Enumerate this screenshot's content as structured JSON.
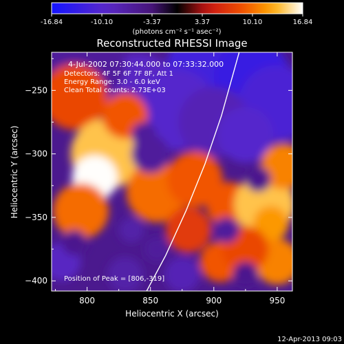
{
  "chart_data": {
    "type": "heatmap",
    "title": "Reconstructed RHESSI Image",
    "xlabel": "Heliocentric X (arcsec)",
    "ylabel": "Heliocentric Y (arcsec)",
    "xlim": [
      772,
      962
    ],
    "ylim": [
      -408,
      -220
    ],
    "xticks": [
      800,
      850,
      900,
      950
    ],
    "yticks": [
      -250,
      -300,
      -350,
      -400
    ],
    "colorbar": {
      "min": -16.84,
      "max": 16.84,
      "ticks": [
        "-16.84",
        "-10.10",
        "-3.37",
        "3.37",
        "10.10",
        "16.84"
      ],
      "unit_label": "(photons cm⁻² s⁻¹ asec⁻²)"
    },
    "annotations": {
      "time": "4-Jul-2002 07:30:44.000 to 07:33:32.000",
      "detectors": "Detectors: 4F 5F 6F 7F 8F, Att 1",
      "energy": "Energy Range: 3.0 - 6.0 keV",
      "method": "Clean     Total counts: 2.73E+03",
      "peak": "Position of Peak = [806,-319]"
    },
    "limb": {
      "description": "solar limb arc",
      "points": [
        [
          847,
          -408
        ],
        [
          862,
          -380
        ],
        [
          878,
          -345
        ],
        [
          893,
          -308
        ],
        [
          906,
          -270
        ],
        [
          920,
          -220
        ]
      ]
    },
    "blobs": [
      {
        "x": 900,
        "y": -235,
        "r": 38,
        "v": -12
      },
      {
        "x": 930,
        "y": -240,
        "r": 30,
        "v": -13
      },
      {
        "x": 950,
        "y": -260,
        "r": 30,
        "v": -11
      },
      {
        "x": 840,
        "y": -250,
        "r": 30,
        "v": -9
      },
      {
        "x": 870,
        "y": -265,
        "r": 32,
        "v": -10
      },
      {
        "x": 900,
        "y": -275,
        "r": 28,
        "v": -8
      },
      {
        "x": 800,
        "y": -230,
        "r": 30,
        "v": -6
      },
      {
        "x": 925,
        "y": -285,
        "r": 22,
        "v": -10
      },
      {
        "x": 790,
        "y": -255,
        "r": 26,
        "v": 8
      },
      {
        "x": 815,
        "y": -300,
        "r": 28,
        "v": 14
      },
      {
        "x": 806,
        "y": -319,
        "r": 18,
        "v": 16.8
      },
      {
        "x": 795,
        "y": -345,
        "r": 22,
        "v": 10
      },
      {
        "x": 830,
        "y": -270,
        "r": 18,
        "v": 9
      },
      {
        "x": 855,
        "y": -330,
        "r": 24,
        "v": 10
      },
      {
        "x": 885,
        "y": -320,
        "r": 22,
        "v": 9
      },
      {
        "x": 912,
        "y": -340,
        "r": 18,
        "v": 9
      },
      {
        "x": 940,
        "y": -340,
        "r": 24,
        "v": 14
      },
      {
        "x": 945,
        "y": -355,
        "r": 14,
        "v": 12
      },
      {
        "x": 955,
        "y": -310,
        "r": 18,
        "v": 11
      },
      {
        "x": 950,
        "y": -385,
        "r": 18,
        "v": 11
      },
      {
        "x": 905,
        "y": -385,
        "r": 16,
        "v": 9
      },
      {
        "x": 925,
        "y": -375,
        "r": 18,
        "v": 8
      },
      {
        "x": 880,
        "y": -360,
        "r": 18,
        "v": 7
      },
      {
        "x": 850,
        "y": -300,
        "r": 15,
        "v": -6
      },
      {
        "x": 780,
        "y": -385,
        "r": 15,
        "v": -9
      },
      {
        "x": 830,
        "y": -395,
        "r": 14,
        "v": -7
      },
      {
        "x": 875,
        "y": -395,
        "r": 14,
        "v": -8
      },
      {
        "x": 835,
        "y": -360,
        "r": 10,
        "v": -7
      },
      {
        "x": 855,
        "y": -375,
        "r": 10,
        "v": -6
      },
      {
        "x": 790,
        "y": -370,
        "r": 10,
        "v": -5
      },
      {
        "x": 910,
        "y": -360,
        "r": 10,
        "v": -6
      },
      {
        "x": 925,
        "y": -395,
        "r": 10,
        "v": -5
      },
      {
        "x": 935,
        "y": -320,
        "r": 10,
        "v": -5
      },
      {
        "x": 845,
        "y": -285,
        "r": 10,
        "v": -6
      }
    ]
  },
  "footer": {
    "timestamp": "12-Apr-2013 09:03"
  }
}
